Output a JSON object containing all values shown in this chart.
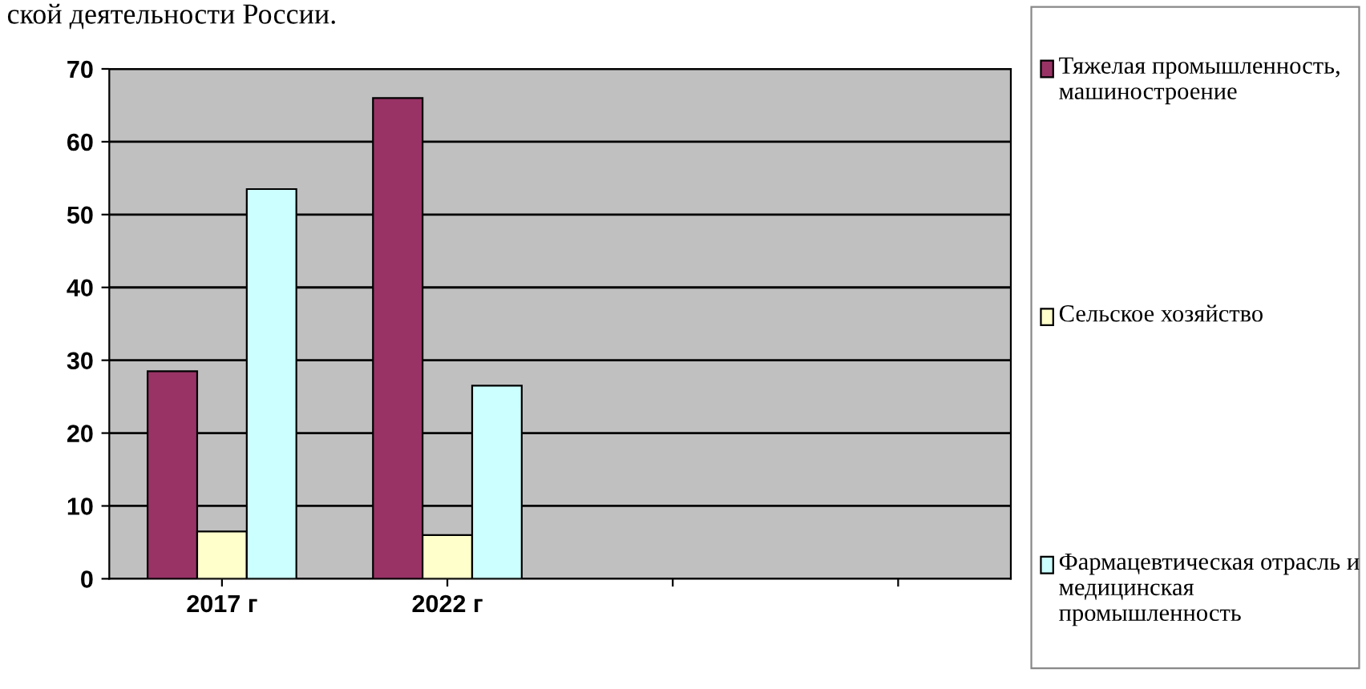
{
  "chart_data": {
    "type": "bar",
    "title": "ской деятельности России.",
    "categories": [
      "2017 г",
      "2022 г",
      null,
      null
    ],
    "series": [
      {
        "name": "Тяжелая промышленность, машиностроение",
        "color": "#993366",
        "values": [
          28.5,
          66,
          null,
          null
        ]
      },
      {
        "name": "Сельское хозяйство",
        "color": "#ffffcc",
        "values": [
          6.5,
          6,
          null,
          null
        ]
      },
      {
        "name": "Фармацевтическая отрасль и медицинская промышленность",
        "color": "#ccffff",
        "values": [
          53.5,
          26.5,
          null,
          null
        ]
      }
    ],
    "ylim": [
      0,
      70
    ],
    "yticks": [
      0,
      10,
      20,
      30,
      40,
      50,
      60,
      70
    ],
    "grid": "y",
    "legend": "right"
  }
}
